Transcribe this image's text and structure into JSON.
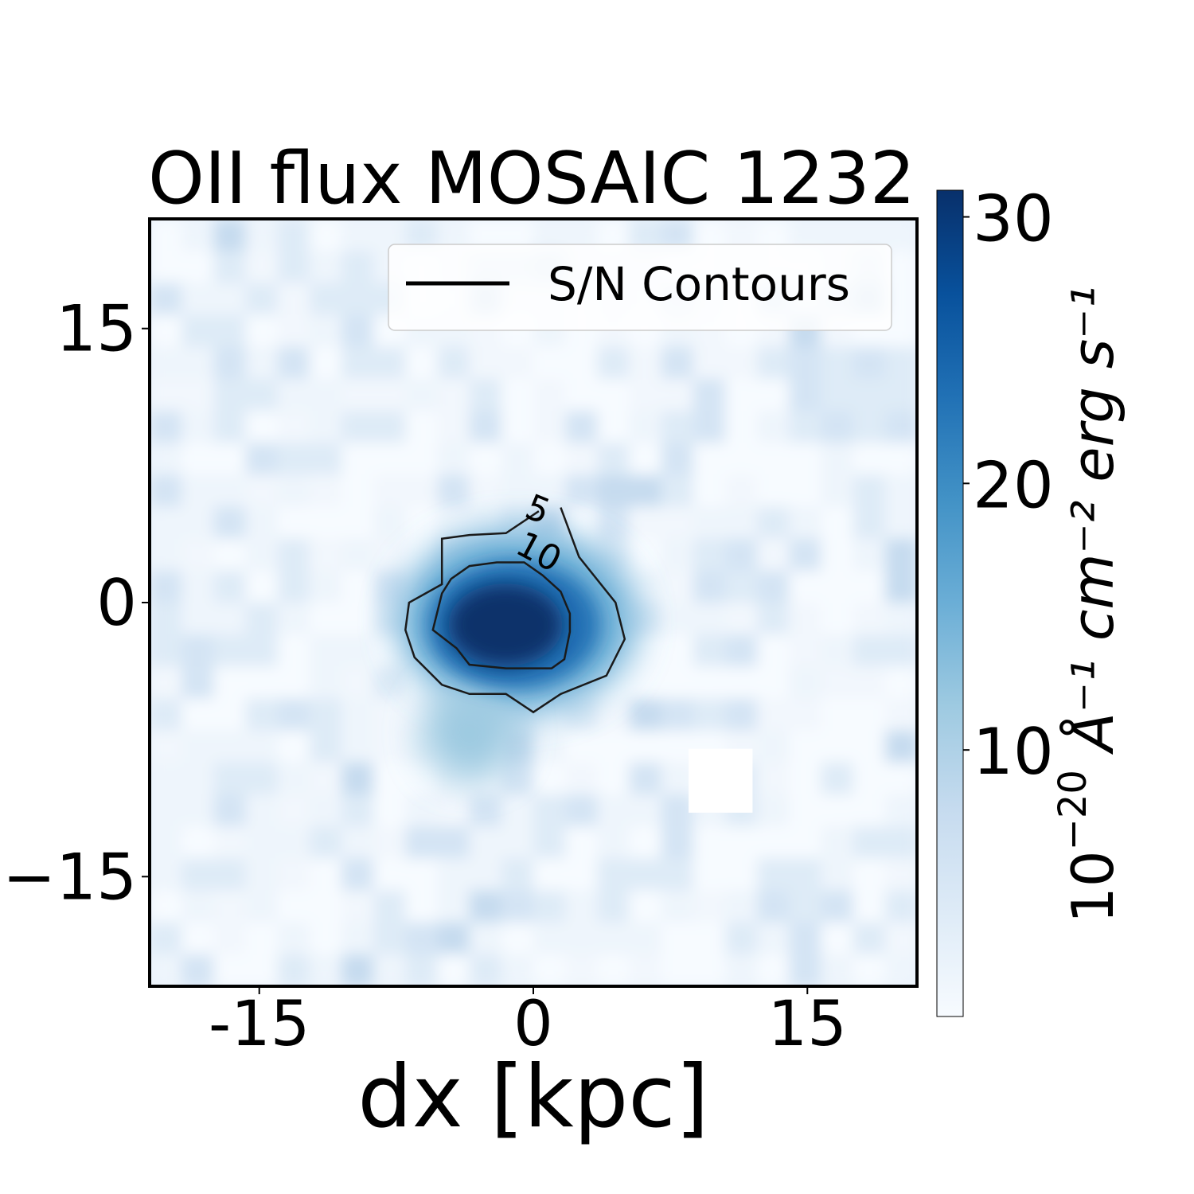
{
  "chart_data": {
    "type": "heatmap",
    "title": "OII flux MOSAIC 1232",
    "xlabel": "dx [kpc]",
    "ylabel": "",
    "xlim": [
      -21,
      21
    ],
    "ylim": [
      -21,
      21
    ],
    "x_ticks": [
      {
        "value": -15,
        "label": "-15"
      },
      {
        "value": 0,
        "label": "0"
      },
      {
        "value": 15,
        "label": "15"
      }
    ],
    "y_ticks": [
      {
        "value": 15,
        "label": "15"
      },
      {
        "value": 0,
        "label": "0"
      },
      {
        "value": -15,
        "label": "−15"
      }
    ],
    "colormap": "Blues",
    "colorbar": {
      "range": [
        0,
        31
      ],
      "ticks": [
        {
          "value": 10,
          "label": "10"
        },
        {
          "value": 20,
          "label": "20"
        },
        {
          "value": 30,
          "label": "30"
        }
      ],
      "label_base": "10",
      "label_exp": "−20",
      "label_rest": " Å⁻¹ cm⁻² erg s⁻¹"
    },
    "peak": {
      "x": -1.5,
      "y": -1,
      "value": 30
    },
    "masked_region": {
      "x": [
        8.5,
        12
      ],
      "y": [
        -11.5,
        -8
      ]
    },
    "legend": {
      "label": "S/N Contours",
      "position": "upper right"
    },
    "contours": [
      {
        "level": 5,
        "label": "5",
        "points": [
          [
            1.5,
            5.2
          ],
          [
            2.5,
            2.5
          ],
          [
            4.5,
            0
          ],
          [
            5,
            -2
          ],
          [
            4,
            -4
          ],
          [
            1.5,
            -5
          ],
          [
            0,
            -6
          ],
          [
            -1.5,
            -5
          ],
          [
            -3.5,
            -5
          ],
          [
            -5,
            -4.5
          ],
          [
            -6.5,
            -3
          ],
          [
            -7,
            -1.5
          ],
          [
            -6.8,
            0
          ],
          [
            -5,
            1
          ],
          [
            -5,
            3.5
          ],
          [
            -3.5,
            3.7
          ],
          [
            -1.5,
            3.8
          ],
          [
            0.3,
            5
          ]
        ]
      },
      {
        "level": 10,
        "label": "10",
        "points": [
          [
            -2,
            2.2
          ],
          [
            -0.5,
            2.2
          ],
          [
            0.5,
            1.5
          ],
          [
            1.5,
            0.6
          ],
          [
            2,
            -0.6
          ],
          [
            2,
            -1.6
          ],
          [
            1.7,
            -3.1
          ],
          [
            1,
            -3.6
          ],
          [
            -1.5,
            -3.6
          ],
          [
            -3.5,
            -3.4
          ],
          [
            -4.2,
            -2.5
          ],
          [
            -5.5,
            -1.5
          ],
          [
            -5,
            0.5
          ],
          [
            -4.5,
            1.3
          ],
          [
            -3.5,
            2
          ]
        ]
      }
    ]
  }
}
